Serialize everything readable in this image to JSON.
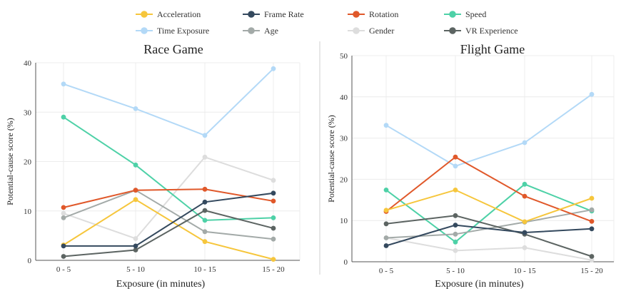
{
  "legend": [
    {
      "name": "Acceleration",
      "color": "#f6c63c"
    },
    {
      "name": "Frame Rate",
      "color": "#34495e"
    },
    {
      "name": "Rotation",
      "color": "#e0582a"
    },
    {
      "name": "Speed",
      "color": "#4ed1a7"
    },
    {
      "name": "Time Exposure",
      "color": "#b3d9f7"
    },
    {
      "name": "Age",
      "color": "#a3aaa8"
    },
    {
      "name": "Gender",
      "color": "#dddddd"
    },
    {
      "name": "VR Experience",
      "color": "#5c6462"
    }
  ],
  "chart_data": [
    {
      "type": "line",
      "title": "Race Game",
      "xlabel": "Exposure (in minutes)",
      "ylabel": "Potential-cause score (%)",
      "categories": [
        "0 - 5",
        "5 - 10",
        "10 - 15",
        "15 - 20"
      ],
      "ylim": [
        0,
        40
      ],
      "yticks": [
        0,
        10,
        20,
        30,
        40
      ],
      "grid": true,
      "series": [
        {
          "name": "Time Exposure",
          "values": [
            35.7,
            30.7,
            25.3,
            38.8
          ]
        },
        {
          "name": "Gender",
          "values": [
            9.5,
            4.4,
            20.9,
            16.2
          ]
        },
        {
          "name": "Speed",
          "values": [
            29.0,
            19.3,
            8.1,
            8.6
          ]
        },
        {
          "name": "Age",
          "values": [
            8.6,
            14.2,
            5.8,
            4.3
          ]
        },
        {
          "name": "Rotation",
          "values": [
            10.7,
            14.2,
            14.4,
            12.0
          ]
        },
        {
          "name": "Acceleration",
          "values": [
            3.1,
            12.3,
            3.8,
            0.2
          ]
        },
        {
          "name": "VR Experience",
          "values": [
            0.8,
            2.1,
            10.1,
            6.5
          ]
        },
        {
          "name": "Frame Rate",
          "values": [
            2.9,
            2.9,
            11.8,
            13.6
          ]
        }
      ]
    },
    {
      "type": "line",
      "title": "Flight Game",
      "xlabel": "Exposure (in minutes)",
      "ylabel": "Potential-cause score (%)",
      "categories": [
        "0 - 5",
        "5 - 10",
        "10 - 15",
        "15 - 20"
      ],
      "ylim": [
        0,
        50
      ],
      "yticks": [
        0,
        10,
        20,
        30,
        40,
        50
      ],
      "grid": true,
      "series": [
        {
          "name": "Time Exposure",
          "values": [
            33.1,
            23.2,
            28.9,
            40.6
          ]
        },
        {
          "name": "Gender",
          "values": [
            5.8,
            2.7,
            3.4,
            0.4
          ]
        },
        {
          "name": "Speed",
          "values": [
            17.4,
            4.8,
            18.8,
            12.3
          ]
        },
        {
          "name": "Age",
          "values": [
            5.8,
            6.7,
            9.6,
            12.6
          ]
        },
        {
          "name": "Rotation",
          "values": [
            12.2,
            25.4,
            15.9,
            9.8
          ]
        },
        {
          "name": "Acceleration",
          "values": [
            12.5,
            17.4,
            9.7,
            15.4
          ]
        },
        {
          "name": "VR Experience",
          "values": [
            9.2,
            11.2,
            6.7,
            1.3
          ]
        },
        {
          "name": "Frame Rate",
          "values": [
            3.9,
            8.9,
            7.1,
            8.0
          ]
        }
      ]
    }
  ]
}
